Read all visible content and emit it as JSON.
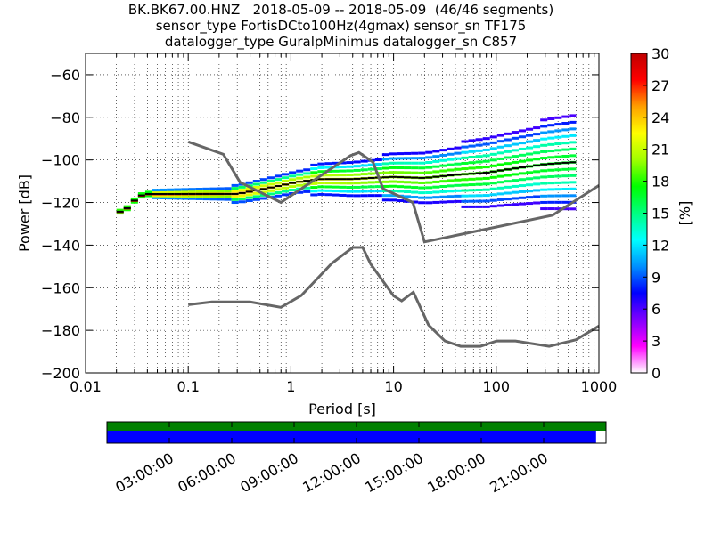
{
  "title_lines": [
    "BK.BK67.00.HNZ   2018-05-09 -- 2018-05-09  (46/46 segments)",
    "sensor_type FortisDCto100Hz(4gmax) sensor_sn TF175",
    "datalogger_type GuralpMinimus datalogger_sn C857"
  ],
  "colors": {
    "noise_model": "#666666",
    "coverage_top": "#008000",
    "coverage_bottom": "#0000ff",
    "colorbar_stops": [
      "#ffffff",
      "#ff00ff",
      "#8000ff",
      "#0000ff",
      "#0090ff",
      "#00ffff",
      "#00ff80",
      "#00ff00",
      "#a0ff00",
      "#ffff00",
      "#ffa000",
      "#ff0000",
      "#c00000"
    ]
  },
  "chart_data": {
    "type": "line",
    "xlabel": "Period [s]",
    "ylabel": "Power [dB]",
    "xscale": "log",
    "xlim": [
      0.01,
      1000
    ],
    "ylim": [
      -200,
      -50
    ],
    "xticks": [
      0.01,
      0.1,
      1,
      10,
      100,
      1000
    ],
    "xtick_labels": [
      "0.01",
      "0.1",
      "1",
      "10",
      "100",
      "1000"
    ],
    "yticks": [
      -200,
      -180,
      -160,
      -140,
      -120,
      -100,
      -80,
      -60
    ],
    "ytick_labels": [
      "−200",
      "−180",
      "−160",
      "−140",
      "−120",
      "−100",
      "−80",
      "−60"
    ],
    "grid": true,
    "series": [
      {
        "role": "high-noise-model",
        "x": [
          0.1,
          0.22,
          0.32,
          0.8,
          3.8,
          4.6,
          6.3,
          7.9,
          15.4,
          20,
          354,
          1000
        ],
        "y": [
          -91.5,
          -97.4,
          -110.5,
          -120,
          -98,
          -96.5,
          -101,
          -113.5,
          -120,
          -138.5,
          -126,
          -112
        ]
      },
      {
        "role": "low-noise-model",
        "x": [
          0.1,
          0.17,
          0.4,
          0.8,
          1.26,
          2.5,
          4.0,
          5.0,
          6.0,
          10,
          12,
          15.6,
          21.9,
          31.6,
          45,
          70,
          101,
          154,
          328,
          600,
          1000
        ],
        "y": [
          -168,
          -166.7,
          -166.7,
          -169.2,
          -163.7,
          -148.6,
          -141.1,
          -141.1,
          -149,
          -163.8,
          -166.2,
          -162.1,
          -177.5,
          -185,
          -187.5,
          -187.5,
          -185,
          -185,
          -187.5,
          -184.4,
          -178
        ]
      },
      {
        "role": "psd-mode",
        "x": [
          0.02,
          0.022,
          0.025,
          0.028,
          0.03,
          0.033,
          0.04,
          0.1,
          0.3,
          0.5,
          0.8,
          1,
          1.3,
          2,
          4,
          6,
          10,
          20,
          40,
          80,
          150,
          300,
          600
        ],
        "y": [
          -126,
          -124,
          -123,
          -121,
          -119,
          -117,
          -116,
          -116,
          -116,
          -114,
          -112,
          -111,
          -110,
          -109,
          -109,
          -108.5,
          -108,
          -108.5,
          -107,
          -106,
          -104,
          -102,
          -101
        ]
      }
    ],
    "colorbar": {
      "label": "[%]",
      "range": [
        0,
        30
      ],
      "ticks": [
        0,
        3,
        6,
        9,
        12,
        15,
        18,
        21,
        24,
        27,
        30
      ],
      "tick_labels": [
        "0",
        "3",
        "6",
        "9",
        "12",
        "15",
        "18",
        "21",
        "24",
        "27",
        "30"
      ]
    },
    "timeline": {
      "tick_labels": [
        "03:00:00",
        "06:00:00",
        "09:00:00",
        "12:00:00",
        "15:00:00",
        "18:00:00",
        "21:00:00"
      ],
      "tick_hours": [
        3,
        6,
        9,
        12,
        15,
        18,
        21
      ],
      "data_coverage_fraction": 1.0,
      "psd_coverage_fraction": 0.98
    }
  }
}
